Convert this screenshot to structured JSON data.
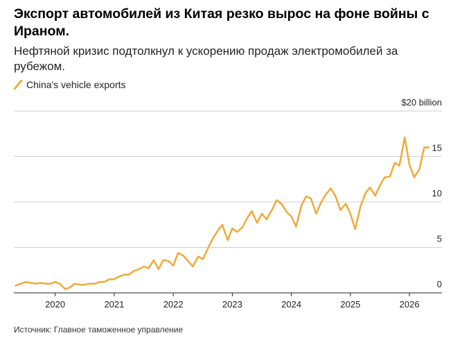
{
  "title": "Экспорт автомобилей из Китая резко вырос на фоне войны с Ираном.",
  "subtitle": "Нефтяной кризис подтолкнул к ускорению продаж электромобилей за рубежом.",
  "source": "Источник: Главное таможенное управление",
  "colors": {
    "series": "#f0a93b",
    "grid": "#cfcfcf",
    "axis": "#222222"
  },
  "chart_data": {
    "type": "line",
    "series": [
      {
        "name": "China's vehicle exports",
        "x": [
          2019.33,
          2019.42,
          2019.5,
          2019.58,
          2019.67,
          2019.75,
          2019.83,
          2019.92,
          2020.0,
          2020.08,
          2020.17,
          2020.25,
          2020.33,
          2020.42,
          2020.5,
          2020.58,
          2020.67,
          2020.75,
          2020.83,
          2020.92,
          2021.0,
          2021.08,
          2021.17,
          2021.25,
          2021.33,
          2021.42,
          2021.5,
          2021.58,
          2021.67,
          2021.75,
          2021.83,
          2021.92,
          2022.0,
          2022.08,
          2022.17,
          2022.25,
          2022.33,
          2022.42,
          2022.5,
          2022.58,
          2022.67,
          2022.75,
          2022.83,
          2022.92,
          2023.0,
          2023.08,
          2023.17,
          2023.25,
          2023.33,
          2023.42,
          2023.5,
          2023.58,
          2023.67,
          2023.75,
          2023.83,
          2023.92,
          2024.0,
          2024.08,
          2024.17,
          2024.25,
          2024.33,
          2024.42,
          2024.5,
          2024.58,
          2024.67,
          2024.75,
          2024.83,
          2024.92,
          2025.0,
          2025.08,
          2025.17,
          2025.25,
          2025.33,
          2025.42,
          2025.5,
          2025.58,
          2025.67,
          2025.75,
          2025.83,
          2025.92,
          2026.0,
          2026.08,
          2026.17,
          2026.25,
          2026.33
        ],
        "values": [
          0.8,
          1.0,
          1.2,
          1.1,
          1.0,
          1.1,
          1.0,
          1.0,
          1.2,
          1.0,
          0.4,
          0.6,
          1.0,
          0.9,
          0.9,
          1.0,
          1.0,
          1.2,
          1.2,
          1.5,
          1.5,
          1.8,
          2.0,
          2.0,
          2.4,
          2.6,
          2.9,
          2.7,
          3.6,
          2.6,
          3.6,
          3.5,
          3.0,
          4.4,
          4.1,
          3.5,
          2.9,
          4.0,
          3.7,
          4.8,
          6.0,
          6.8,
          7.5,
          5.8,
          7.1,
          6.7,
          7.2,
          8.2,
          9.0,
          7.7,
          8.7,
          8.1,
          9.1,
          10.2,
          9.8,
          8.9,
          8.4,
          7.3,
          9.6,
          10.6,
          10.4,
          8.7,
          9.9,
          10.8,
          11.5,
          10.6,
          9.1,
          9.8,
          8.7,
          7.0,
          9.5,
          10.9,
          11.6,
          10.7,
          11.8,
          12.7,
          12.8,
          14.3,
          14.0,
          17.1,
          14.1,
          12.7,
          13.6,
          16.0,
          16.0
        ],
        "y_values_note": ""
      }
    ],
    "x_ticks": [
      "2020",
      "2021",
      "2022",
      "2023",
      "2024",
      "2025",
      "2026"
    ],
    "y_ticks": [
      "0",
      "5",
      "10",
      "15",
      "$20 billion"
    ],
    "y_tick_values": [
      0,
      5,
      10,
      15,
      20
    ],
    "x_tick_values": [
      2020,
      2021,
      2022,
      2023,
      2024,
      2025,
      2026
    ],
    "xlim": [
      2019.3,
      2026.55
    ],
    "ylim": [
      0,
      20
    ],
    "grid": true,
    "legend": "top-left"
  }
}
